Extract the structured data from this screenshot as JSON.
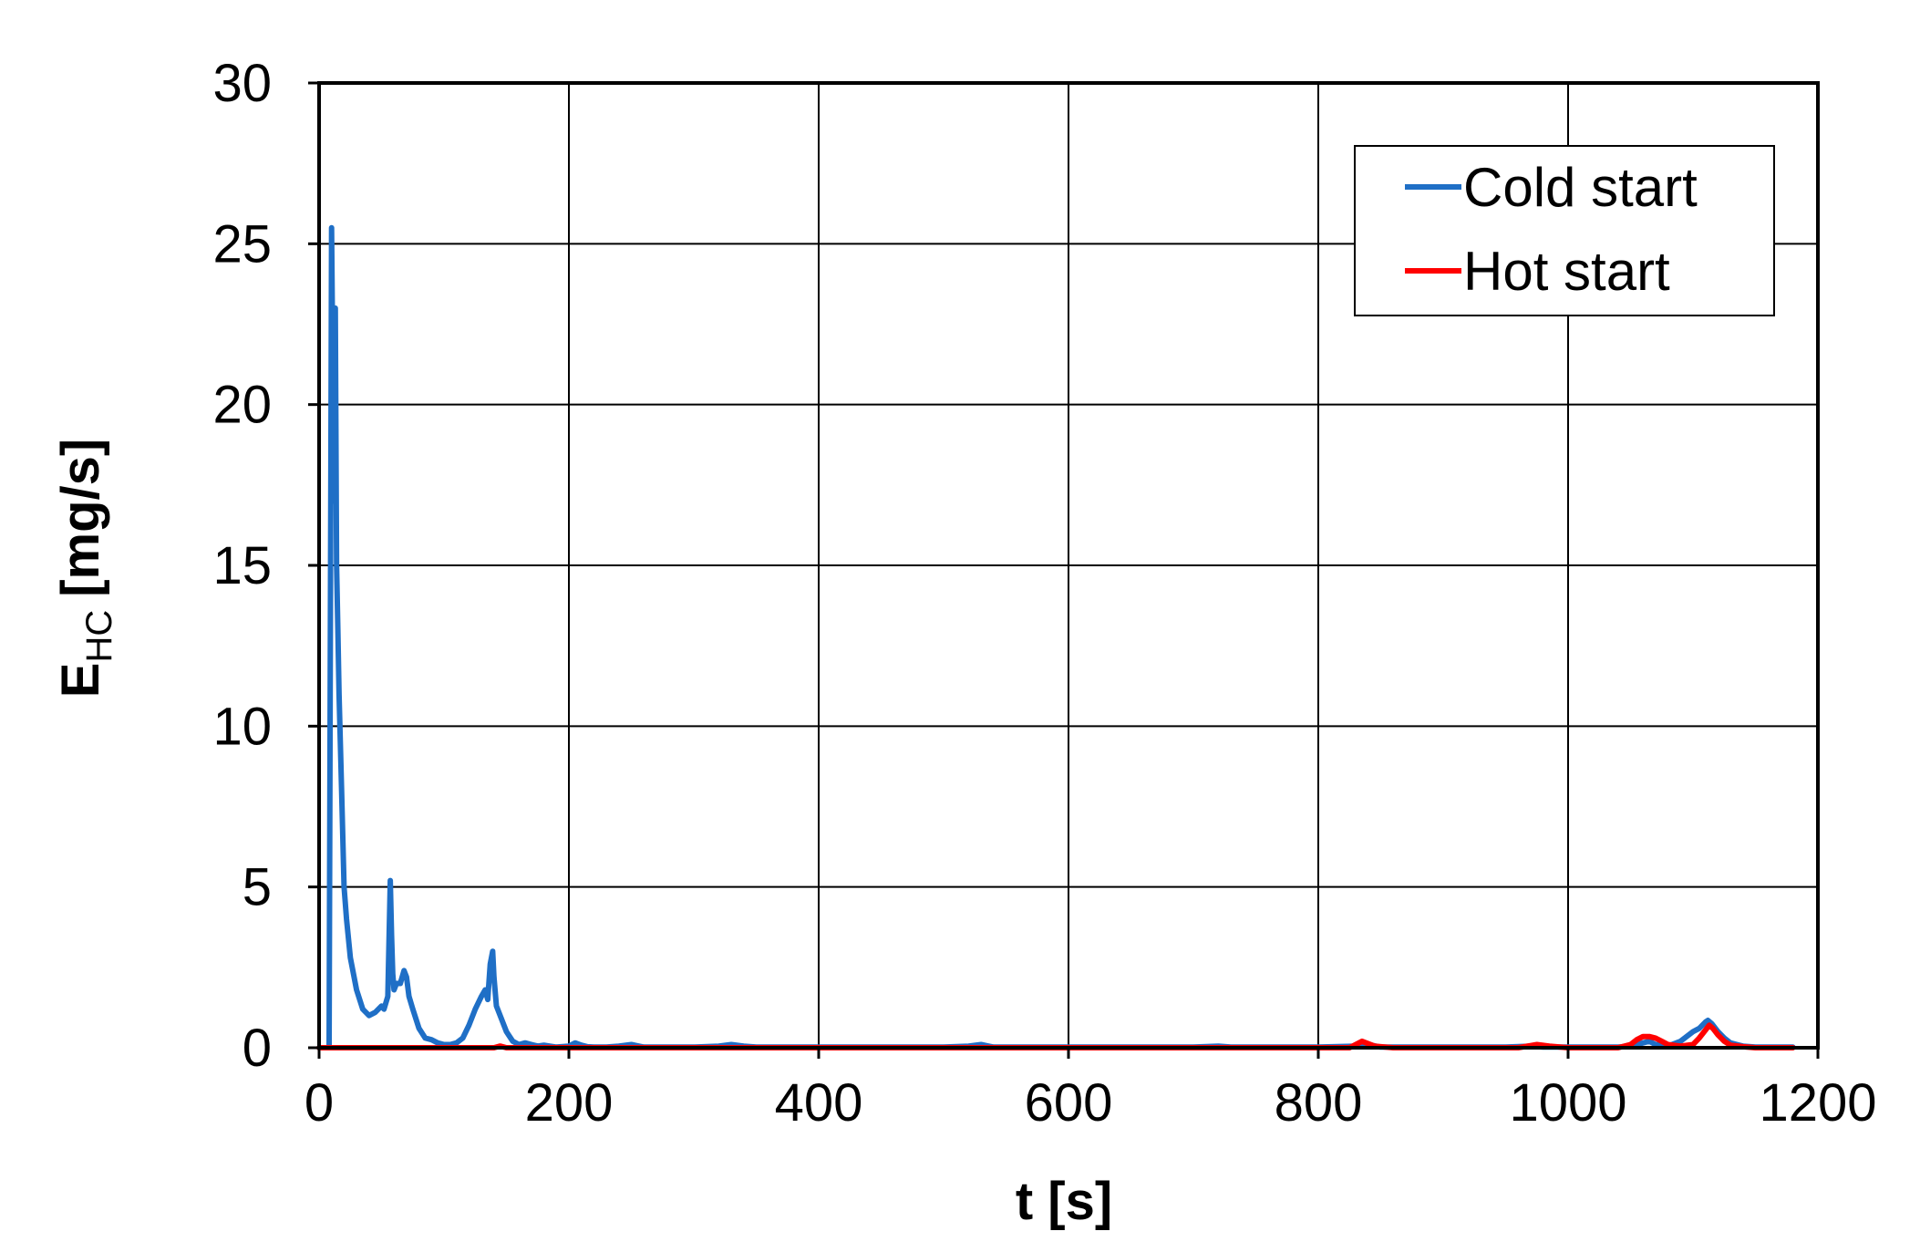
{
  "chart_data": {
    "type": "line",
    "xlabel": "t [s]",
    "ylabel": {
      "main": "E",
      "subscript": "HC",
      "unit": "[mg/s]"
    },
    "xlim": [
      0,
      1200
    ],
    "ylim": [
      0,
      30
    ],
    "xticks": [
      0,
      200,
      400,
      600,
      800,
      1000,
      1200
    ],
    "yticks": [
      0,
      5,
      10,
      15,
      20,
      25,
      30
    ],
    "grid": true,
    "legend_position": "top-right",
    "series": [
      {
        "name": "Cold start",
        "color": "#1f6fc6",
        "x": [
          0,
          8,
          10,
          12,
          13,
          14,
          15,
          16,
          18,
          20,
          22,
          25,
          30,
          35,
          40,
          45,
          50,
          52,
          55,
          57,
          58,
          59,
          60,
          62,
          65,
          68,
          70,
          72,
          75,
          80,
          85,
          90,
          95,
          100,
          105,
          110,
          115,
          120,
          125,
          130,
          133,
          135,
          137,
          139,
          140,
          142,
          145,
          150,
          155,
          160,
          165,
          170,
          175,
          180,
          190,
          200,
          205,
          210,
          215,
          220,
          230,
          240,
          250,
          260,
          270,
          300,
          320,
          330,
          340,
          350,
          400,
          450,
          500,
          520,
          530,
          540,
          600,
          700,
          720,
          730,
          800,
          830,
          840,
          850,
          900,
          950,
          970,
          980,
          1000,
          1040,
          1050,
          1055,
          1060,
          1065,
          1070,
          1080,
          1090,
          1100,
          1105,
          1110,
          1112,
          1115,
          1120,
          1125,
          1130,
          1140,
          1150,
          1160,
          1170,
          1180
        ],
        "y": [
          0,
          0,
          25.5,
          17,
          23,
          15,
          13,
          11,
          8,
          5,
          4,
          2.8,
          1.8,
          1.2,
          1.0,
          1.1,
          1.3,
          1.2,
          1.6,
          5.2,
          3.5,
          2.3,
          1.8,
          2.0,
          2.0,
          2.4,
          2.2,
          1.6,
          1.2,
          0.6,
          0.3,
          0.25,
          0.15,
          0.1,
          0.1,
          0.15,
          0.3,
          0.7,
          1.2,
          1.6,
          1.8,
          1.5,
          2.6,
          3.0,
          2.2,
          1.3,
          1.0,
          0.5,
          0.2,
          0.1,
          0.15,
          0.1,
          0.05,
          0.08,
          0.02,
          0.05,
          0.15,
          0.08,
          0.03,
          0.02,
          0.02,
          0.05,
          0.1,
          0.02,
          0.02,
          0.02,
          0.05,
          0.1,
          0.05,
          0.02,
          0.02,
          0.02,
          0.02,
          0.05,
          0.1,
          0.02,
          0.02,
          0.02,
          0.05,
          0.02,
          0.02,
          0.05,
          0.1,
          0.02,
          0.02,
          0.02,
          0.05,
          0.02,
          0.02,
          0.02,
          0.05,
          0.1,
          0.15,
          0.2,
          0.1,
          0.05,
          0.2,
          0.5,
          0.6,
          0.8,
          0.85,
          0.75,
          0.5,
          0.3,
          0.15,
          0.05,
          0.02,
          0.02,
          0.02,
          0.02
        ]
      },
      {
        "name": "Hot start",
        "color": "#ff0000",
        "x": [
          0,
          100,
          140,
          145,
          150,
          200,
          400,
          600,
          800,
          825,
          835,
          845,
          860,
          900,
          960,
          975,
          985,
          1000,
          1040,
          1050,
          1055,
          1060,
          1065,
          1070,
          1075,
          1080,
          1090,
          1100,
          1105,
          1110,
          1113,
          1116,
          1120,
          1125,
          1130,
          1140,
          1150,
          1160,
          1180
        ],
        "y": [
          0,
          0,
          0,
          0.05,
          0,
          0,
          0,
          0,
          0,
          0,
          0.2,
          0.05,
          0,
          0,
          0,
          0.1,
          0.05,
          0,
          0,
          0.1,
          0.25,
          0.35,
          0.35,
          0.3,
          0.2,
          0.1,
          0.05,
          0.1,
          0.3,
          0.55,
          0.7,
          0.6,
          0.4,
          0.2,
          0.08,
          0.03,
          0,
          0,
          0
        ]
      }
    ]
  }
}
